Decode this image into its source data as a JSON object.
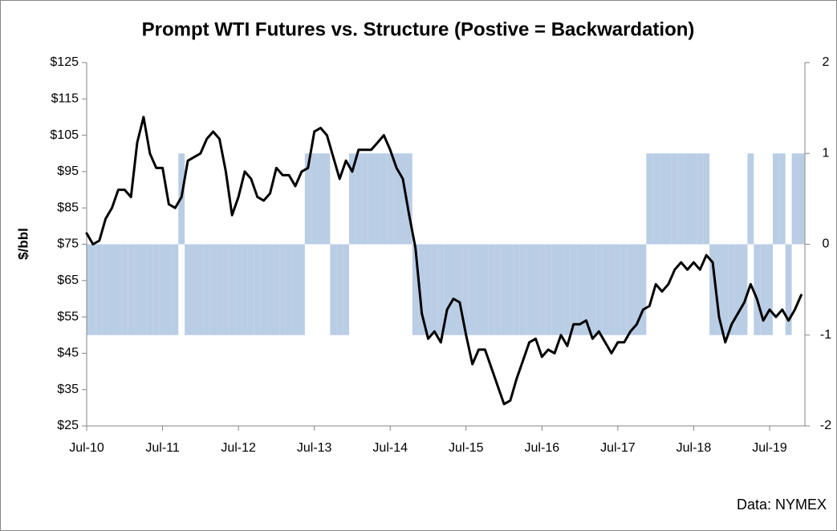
{
  "chart_data": {
    "type": "line",
    "title": "Prompt WTI Futures vs. Structure (Postive = Backwardation)",
    "y_label": "$/bbl",
    "annotation": "Data: NYMEX",
    "categories": [
      "Jul-10",
      null,
      null,
      null,
      null,
      null,
      null,
      null,
      null,
      null,
      null,
      null,
      "Jul-11",
      null,
      null,
      null,
      null,
      null,
      null,
      null,
      null,
      null,
      null,
      null,
      "Jul-12",
      null,
      null,
      null,
      null,
      null,
      null,
      null,
      null,
      null,
      null,
      null,
      "Jul-13",
      null,
      null,
      null,
      null,
      null,
      null,
      null,
      null,
      null,
      null,
      null,
      "Jul-14",
      null,
      null,
      null,
      null,
      null,
      null,
      null,
      null,
      null,
      null,
      null,
      "Jul-15",
      null,
      null,
      null,
      null,
      null,
      null,
      null,
      null,
      null,
      null,
      null,
      "Jul-16",
      null,
      null,
      null,
      null,
      null,
      null,
      null,
      null,
      null,
      null,
      null,
      "Jul-17",
      null,
      null,
      null,
      null,
      null,
      null,
      null,
      null,
      null,
      null,
      null,
      "Jul-18",
      null,
      null,
      null,
      null,
      null,
      null,
      null,
      null,
      null,
      null,
      null,
      "Jul-19",
      null,
      null,
      null,
      null,
      null
    ],
    "series": [
      {
        "color": "#000000",
        "values": [
          78,
          75,
          76,
          82,
          85,
          90,
          90,
          88,
          103,
          110,
          100,
          96,
          96,
          86,
          85,
          88,
          98,
          99,
          100,
          104,
          106,
          104,
          95,
          83,
          88,
          95,
          93,
          88,
          87,
          89,
          96,
          94,
          94,
          91,
          95,
          96,
          106,
          107,
          105,
          99,
          93,
          98,
          95,
          101,
          101,
          101,
          103,
          105,
          101,
          96,
          93,
          83,
          74,
          56,
          49,
          51,
          48,
          57,
          60,
          59,
          50,
          42,
          46,
          46,
          41,
          36,
          31,
          32,
          38,
          43,
          48,
          49,
          44,
          46,
          45,
          50,
          47,
          53,
          53,
          54,
          49,
          51,
          48,
          45,
          48,
          48,
          51,
          53,
          57,
          58,
          64,
          62,
          64,
          68,
          70,
          68,
          70,
          68,
          72,
          70,
          55,
          48,
          53,
          56,
          59,
          64,
          60,
          54,
          57,
          55,
          57,
          54,
          57,
          61
        ]
      },
      {
        "type": "area",
        "axis": "y2",
        "color": "#b9cde5",
        "values": [
          -1,
          -1,
          -1,
          -1,
          -1,
          -1,
          -1,
          -1,
          -1,
          -1,
          -1,
          -1,
          -1,
          -1,
          -1,
          1,
          -1,
          -1,
          -1,
          -1,
          -1,
          -1,
          -1,
          -1,
          -1,
          -1,
          -1,
          -1,
          -1,
          -1,
          -1,
          -1,
          -1,
          -1,
          -1,
          1,
          1,
          1,
          1,
          -1,
          -1,
          -1,
          1,
          1,
          1,
          1,
          1,
          1,
          1,
          1,
          1,
          1,
          -1,
          -1,
          -1,
          -1,
          -1,
          -1,
          -1,
          -1,
          -1,
          -1,
          -1,
          -1,
          -1,
          -1,
          -1,
          -1,
          -1,
          -1,
          -1,
          -1,
          -1,
          -1,
          -1,
          -1,
          -1,
          -1,
          -1,
          -1,
          -1,
          -1,
          -1,
          -1,
          -1,
          -1,
          -1,
          -1,
          -1,
          1,
          1,
          1,
          1,
          1,
          1,
          1,
          1,
          1,
          1,
          -1,
          -1,
          -1,
          -1,
          -1,
          -1,
          1,
          -1,
          -1,
          -1,
          1,
          1,
          -1,
          1,
          1
        ]
      }
    ],
    "ylim": [
      25,
      125
    ],
    "yticks": [
      {
        "value": 25,
        "label": "$25"
      },
      {
        "value": 35,
        "label": "$35"
      },
      {
        "value": 45,
        "label": "$45"
      },
      {
        "value": 55,
        "label": "$55"
      },
      {
        "value": 65,
        "label": "$65"
      },
      {
        "value": 75,
        "label": "$75"
      },
      {
        "value": 85,
        "label": "$85"
      },
      {
        "value": 95,
        "label": "$95"
      },
      {
        "value": 105,
        "label": "$105"
      },
      {
        "value": 115,
        "label": "$115"
      },
      {
        "value": 125,
        "label": "$125"
      }
    ],
    "y2lim": [
      -2,
      2
    ],
    "y2ticks": [
      -2,
      -1,
      0,
      1,
      2
    ],
    "grid": false
  }
}
